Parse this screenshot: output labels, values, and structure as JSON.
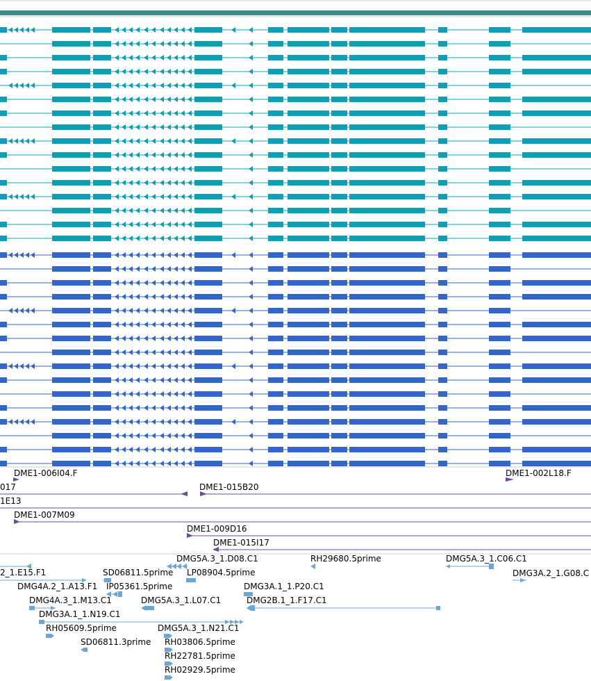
{
  "colors": {
    "top_bar": "#3a8c8c",
    "track_teal": "#0aa0b8",
    "track_blue": "#3366cc",
    "bac_purple": "#6a4aa0",
    "est_lightblue": "#6aa6d6",
    "divider": "#cccccc"
  },
  "tracks": {
    "teal_transcript_count": 16,
    "blue_transcript_count": 16
  },
  "bac_labels": [
    "DME1-006I04.F",
    "DME1-002L18.F",
    "017",
    "DME1-015B20",
    "1E13",
    "DME1-007M09",
    "DME1-009D16",
    "DME1-015I17"
  ],
  "est_labels": [
    "DMG5A.3_1.D08.C1",
    "RH29680.5prime",
    "DMG5A.3_1.C06.C1",
    "2_1.E15.F1",
    "SD06811.5prime",
    "LP08904.5prime",
    "DMG3A.2_1.G08.C",
    "DMG4A.2_1.A13.F1",
    "IP05361.5prime",
    "DMG3A.1_1.P20.C1",
    "DMG4A.3_1.M13.C1",
    "DMG5A.3_1.L07.C1",
    "DMG2B.1_1.F17.C1",
    "DMG3A.1_1.N19.C1",
    "RH05609.5prime",
    "DMG5A.3_1.N21.C1",
    "SD06811.3prime",
    "RH03806.5prime",
    "RH22781.5prime",
    "RH02929.5prime"
  ]
}
